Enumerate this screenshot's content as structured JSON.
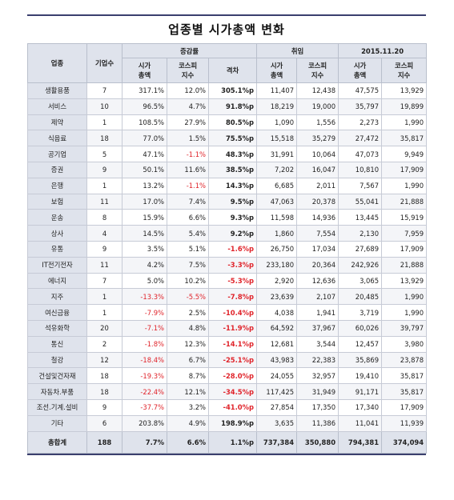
{
  "title": "업종별 시가총액 변화",
  "headers": {
    "industry": "업종",
    "count": "기업수",
    "group_change": "증감률",
    "group_inauguration": "취임",
    "group_date": "2015.11.20",
    "market_cap": "시가\n총액",
    "kospi": "코스피\n지수",
    "gap": "격차"
  },
  "rows": [
    {
      "name": "생활용품",
      "count": "7",
      "cap_rate": "317.1%",
      "kospi_rate": "12.0%",
      "gap": "305.1%p",
      "cap_start": "11,407",
      "kospi_start": "12,438",
      "cap_end": "47,575",
      "kospi_end": "13,929"
    },
    {
      "name": "서비스",
      "count": "10",
      "cap_rate": "96.5%",
      "kospi_rate": "4.7%",
      "gap": "91.8%p",
      "cap_start": "18,219",
      "kospi_start": "19,000",
      "cap_end": "35,797",
      "kospi_end": "19,899"
    },
    {
      "name": "제약",
      "count": "1",
      "cap_rate": "108.5%",
      "kospi_rate": "27.9%",
      "gap": "80.5%p",
      "cap_start": "1,090",
      "kospi_start": "1,556",
      "cap_end": "2,273",
      "kospi_end": "1,990"
    },
    {
      "name": "식음료",
      "count": "18",
      "cap_rate": "77.0%",
      "kospi_rate": "1.5%",
      "gap": "75.5%p",
      "cap_start": "15,518",
      "kospi_start": "35,279",
      "cap_end": "27,472",
      "kospi_end": "35,817"
    },
    {
      "name": "공기업",
      "count": "5",
      "cap_rate": "47.1%",
      "kospi_rate": "-1.1%",
      "gap": "48.3%p",
      "cap_start": "31,991",
      "kospi_start": "10,064",
      "cap_end": "47,073",
      "kospi_end": "9,949"
    },
    {
      "name": "증권",
      "count": "9",
      "cap_rate": "50.1%",
      "kospi_rate": "11.6%",
      "gap": "38.5%p",
      "cap_start": "7,202",
      "kospi_start": "16,047",
      "cap_end": "10,810",
      "kospi_end": "17,909"
    },
    {
      "name": "은행",
      "count": "1",
      "cap_rate": "13.2%",
      "kospi_rate": "-1.1%",
      "gap": "14.3%p",
      "cap_start": "6,685",
      "kospi_start": "2,011",
      "cap_end": "7,567",
      "kospi_end": "1,990"
    },
    {
      "name": "보험",
      "count": "11",
      "cap_rate": "17.0%",
      "kospi_rate": "7.4%",
      "gap": "9.5%p",
      "cap_start": "47,063",
      "kospi_start": "20,378",
      "cap_end": "55,041",
      "kospi_end": "21,888"
    },
    {
      "name": "운송",
      "count": "8",
      "cap_rate": "15.9%",
      "kospi_rate": "6.6%",
      "gap": "9.3%p",
      "cap_start": "11,598",
      "kospi_start": "14,936",
      "cap_end": "13,445",
      "kospi_end": "15,919"
    },
    {
      "name": "상사",
      "count": "4",
      "cap_rate": "14.5%",
      "kospi_rate": "5.4%",
      "gap": "9.2%p",
      "cap_start": "1,860",
      "kospi_start": "7,554",
      "cap_end": "2,130",
      "kospi_end": "7,959"
    },
    {
      "name": "유통",
      "count": "9",
      "cap_rate": "3.5%",
      "kospi_rate": "5.1%",
      "gap": "-1.6%p",
      "cap_start": "26,750",
      "kospi_start": "17,034",
      "cap_end": "27,689",
      "kospi_end": "17,909"
    },
    {
      "name": "IT전기전자",
      "count": "11",
      "cap_rate": "4.2%",
      "kospi_rate": "7.5%",
      "gap": "-3.3%p",
      "cap_start": "233,180",
      "kospi_start": "20,364",
      "cap_end": "242,926",
      "kospi_end": "21,888"
    },
    {
      "name": "에너지",
      "count": "7",
      "cap_rate": "5.0%",
      "kospi_rate": "10.2%",
      "gap": "-5.3%p",
      "cap_start": "2,920",
      "kospi_start": "12,636",
      "cap_end": "3,065",
      "kospi_end": "13,929"
    },
    {
      "name": "지주",
      "count": "1",
      "cap_rate": "-13.3%",
      "kospi_rate": "-5.5%",
      "gap": "-7.8%p",
      "cap_start": "23,639",
      "kospi_start": "2,107",
      "cap_end": "20,485",
      "kospi_end": "1,990"
    },
    {
      "name": "여신금융",
      "count": "1",
      "cap_rate": "-7.9%",
      "kospi_rate": "2.5%",
      "gap": "-10.4%p",
      "cap_start": "4,038",
      "kospi_start": "1,941",
      "cap_end": "3,719",
      "kospi_end": "1,990"
    },
    {
      "name": "석유화학",
      "count": "20",
      "cap_rate": "-7.1%",
      "kospi_rate": "4.8%",
      "gap": "-11.9%p",
      "cap_start": "64,592",
      "kospi_start": "37,967",
      "cap_end": "60,026",
      "kospi_end": "39,797"
    },
    {
      "name": "통신",
      "count": "2",
      "cap_rate": "-1.8%",
      "kospi_rate": "12.3%",
      "gap": "-14.1%p",
      "cap_start": "12,681",
      "kospi_start": "3,544",
      "cap_end": "12,457",
      "kospi_end": "3,980"
    },
    {
      "name": "철강",
      "count": "12",
      "cap_rate": "-18.4%",
      "kospi_rate": "6.7%",
      "gap": "-25.1%p",
      "cap_start": "43,983",
      "kospi_start": "22,383",
      "cap_end": "35,869",
      "kospi_end": "23,878"
    },
    {
      "name": "건설및건자재",
      "count": "18",
      "cap_rate": "-19.3%",
      "kospi_rate": "8.7%",
      "gap": "-28.0%p",
      "cap_start": "24,055",
      "kospi_start": "32,957",
      "cap_end": "19,410",
      "kospi_end": "35,817"
    },
    {
      "name": "자동차.부품",
      "count": "18",
      "cap_rate": "-22.4%",
      "kospi_rate": "12.1%",
      "gap": "-34.5%p",
      "cap_start": "117,425",
      "kospi_start": "31,949",
      "cap_end": "91,171",
      "kospi_end": "35,817"
    },
    {
      "name": "조선.기계.설비",
      "count": "9",
      "cap_rate": "-37.7%",
      "kospi_rate": "3.2%",
      "gap": "-41.0%p",
      "cap_start": "27,854",
      "kospi_start": "17,350",
      "cap_end": "17,340",
      "kospi_end": "17,909"
    },
    {
      "name": "기타",
      "count": "6",
      "cap_rate": "203.8%",
      "kospi_rate": "4.9%",
      "gap": "198.9%p",
      "cap_start": "3,635",
      "kospi_start": "11,386",
      "cap_end": "11,041",
      "kospi_end": "11,939"
    }
  ],
  "total": {
    "name": "총합계",
    "count": "188",
    "cap_rate": "7.7%",
    "kospi_rate": "6.6%",
    "gap": "1.1%p",
    "cap_start": "737,384",
    "kospi_start": "350,880",
    "cap_end": "794,381",
    "kospi_end": "374,094"
  },
  "colors": {
    "header_bg": "#dfe3ec",
    "negative": "#e0242b",
    "rule": "#3a3f6e",
    "grid": "#c7cbd6"
  }
}
